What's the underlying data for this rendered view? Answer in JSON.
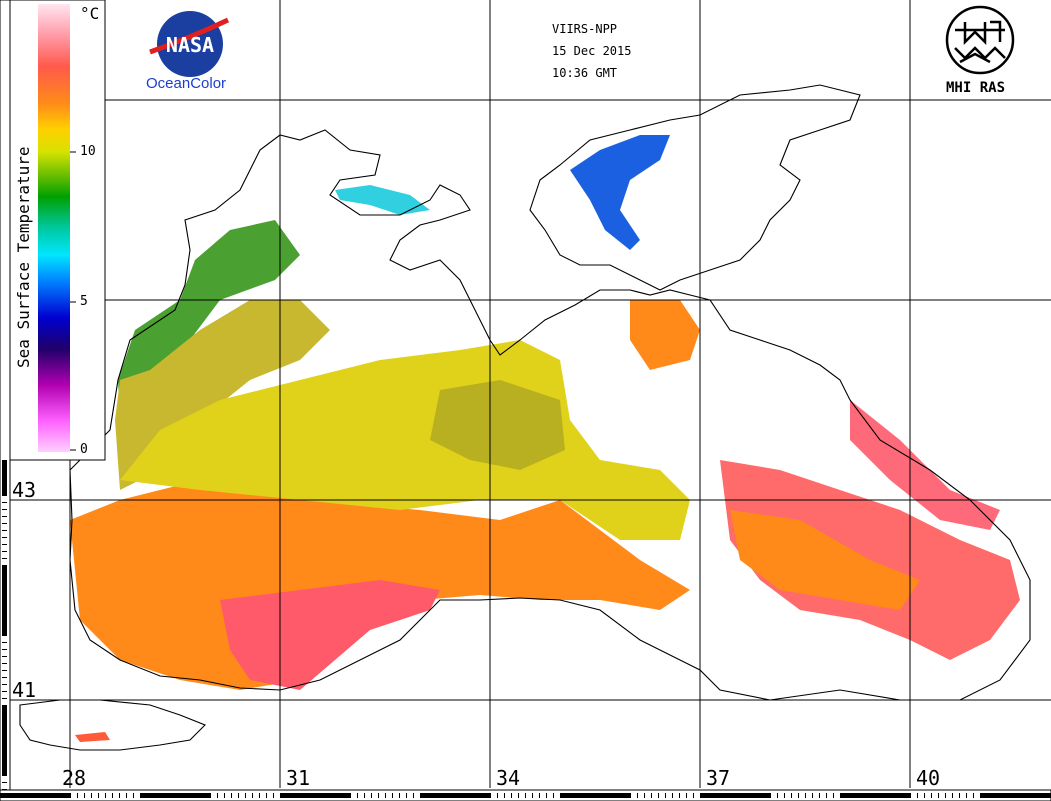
{
  "header": {
    "sensor": "VIIRS-NPP",
    "date": "15 Dec 2015",
    "time": "10:36 GMT"
  },
  "logos": {
    "nasa_text": "NASA",
    "oceancolor": "OceanColor",
    "mhi_text": "MHI RAS"
  },
  "colorbar": {
    "title": "Sea Surface Temperature",
    "unit": "°C",
    "ticks": [
      "10",
      "5",
      "0"
    ],
    "colors": [
      "#ffe6f0",
      "#ff9aa8",
      "#ff5a4a",
      "#ff8a1a",
      "#ffd000",
      "#d6e200",
      "#6fc000",
      "#00a000",
      "#00c8a0",
      "#00e6ff",
      "#0080ff",
      "#0000d0",
      "#20006a",
      "#b000b0",
      "#ff60ff",
      "#ffd0ff"
    ]
  },
  "axes": {
    "longitude_labels": [
      "28",
      "31",
      "34",
      "37",
      "40"
    ],
    "latitude_labels": [
      "43",
      "41"
    ]
  },
  "colors": {
    "warm": "#ff8a1a",
    "hot": "#ff5a6a",
    "mid": "#e0d21a",
    "olive": "#b8b020",
    "green": "#4aa030",
    "cyan": "#30d0e0",
    "blue": "#1a60e0",
    "coast": "#000000",
    "grid": "#000000"
  }
}
